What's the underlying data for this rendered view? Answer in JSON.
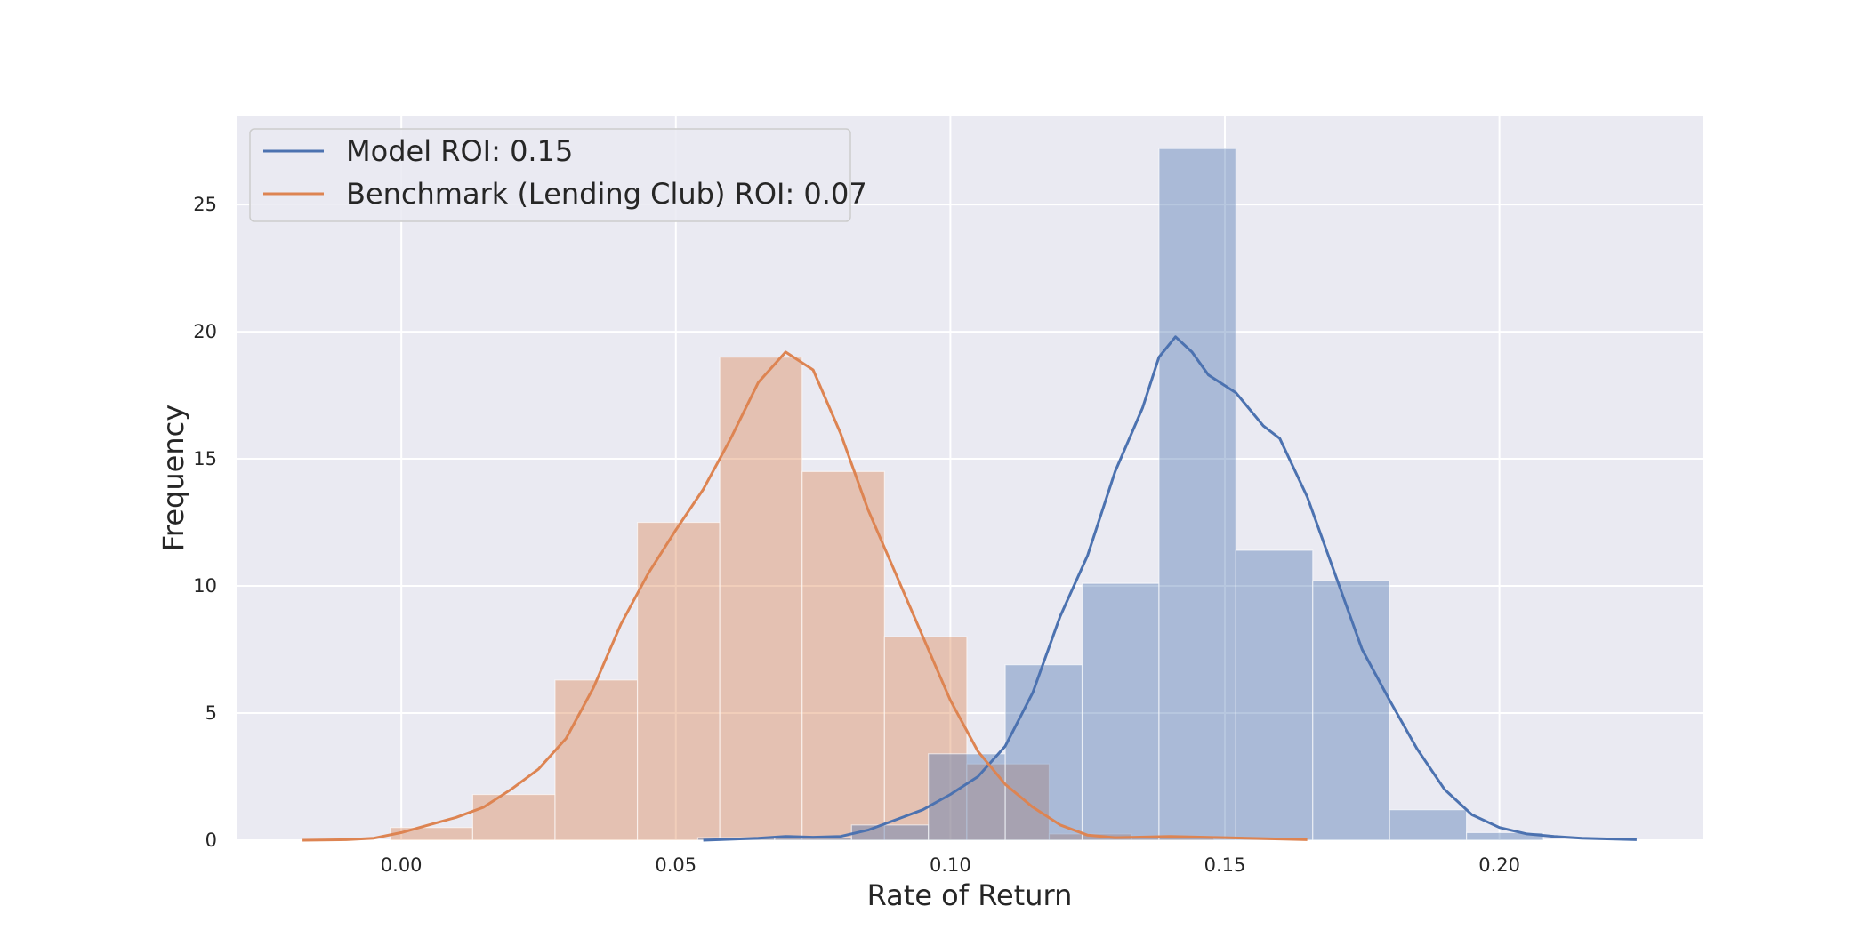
{
  "chart_data": {
    "type": "histogram",
    "xlabel": "Rate of Return",
    "ylabel": "Frequency",
    "xlim": [
      -0.03,
      0.237
    ],
    "ylim": [
      0,
      28.5
    ],
    "x_ticks": [
      0.0,
      0.05,
      0.1,
      0.15,
      0.2
    ],
    "x_tick_labels": [
      "0.00",
      "0.05",
      "0.10",
      "0.15",
      "0.20"
    ],
    "y_ticks": [
      0,
      5,
      10,
      15,
      20,
      25
    ],
    "y_tick_labels": [
      "0",
      "5",
      "10",
      "15",
      "20",
      "25"
    ],
    "grid": true,
    "legend_position": "top-left",
    "background_color": "#eaeaf2",
    "series": [
      {
        "name": "Model ROI: 0.15",
        "color": "#4c72b0",
        "bins": [
          {
            "x0": 0.054,
            "x1": 0.068,
            "value": 0.1
          },
          {
            "x0": 0.068,
            "x1": 0.082,
            "value": 0.1
          },
          {
            "x0": 0.082,
            "x1": 0.096,
            "value": 0.6
          },
          {
            "x0": 0.096,
            "x1": 0.11,
            "value": 3.4
          },
          {
            "x0": 0.11,
            "x1": 0.124,
            "value": 6.9
          },
          {
            "x0": 0.124,
            "x1": 0.138,
            "value": 10.1
          },
          {
            "x0": 0.138,
            "x1": 0.152,
            "value": 27.2
          },
          {
            "x0": 0.152,
            "x1": 0.166,
            "value": 11.4
          },
          {
            "x0": 0.166,
            "x1": 0.18,
            "value": 10.2
          },
          {
            "x0": 0.18,
            "x1": 0.194,
            "value": 1.2
          },
          {
            "x0": 0.194,
            "x1": 0.208,
            "value": 0.3
          }
        ],
        "kde": [
          [
            0.055,
            0.0
          ],
          [
            0.065,
            0.08
          ],
          [
            0.07,
            0.15
          ],
          [
            0.075,
            0.12
          ],
          [
            0.08,
            0.15
          ],
          [
            0.085,
            0.4
          ],
          [
            0.09,
            0.8
          ],
          [
            0.095,
            1.2
          ],
          [
            0.1,
            1.8
          ],
          [
            0.105,
            2.5
          ],
          [
            0.11,
            3.7
          ],
          [
            0.115,
            5.8
          ],
          [
            0.12,
            8.8
          ],
          [
            0.125,
            11.2
          ],
          [
            0.13,
            14.5
          ],
          [
            0.135,
            17.0
          ],
          [
            0.138,
            19.0
          ],
          [
            0.141,
            19.8
          ],
          [
            0.144,
            19.2
          ],
          [
            0.147,
            18.3
          ],
          [
            0.152,
            17.6
          ],
          [
            0.157,
            16.3
          ],
          [
            0.16,
            15.8
          ],
          [
            0.165,
            13.5
          ],
          [
            0.17,
            10.5
          ],
          [
            0.175,
            7.5
          ],
          [
            0.18,
            5.5
          ],
          [
            0.185,
            3.6
          ],
          [
            0.19,
            2.0
          ],
          [
            0.195,
            1.0
          ],
          [
            0.2,
            0.5
          ],
          [
            0.205,
            0.25
          ],
          [
            0.21,
            0.15
          ],
          [
            0.215,
            0.08
          ],
          [
            0.225,
            0.02
          ]
        ]
      },
      {
        "name": "Benchmark (Lending Club) ROI: 0.07",
        "color": "#dd8452",
        "bins": [
          {
            "x0": -0.002,
            "x1": 0.013,
            "value": 0.5
          },
          {
            "x0": 0.013,
            "x1": 0.028,
            "value": 1.8
          },
          {
            "x0": 0.028,
            "x1": 0.043,
            "value": 6.3
          },
          {
            "x0": 0.043,
            "x1": 0.058,
            "value": 12.5
          },
          {
            "x0": 0.058,
            "x1": 0.073,
            "value": 19.0
          },
          {
            "x0": 0.073,
            "x1": 0.088,
            "value": 14.5
          },
          {
            "x0": 0.088,
            "x1": 0.103,
            "value": 8.0
          },
          {
            "x0": 0.103,
            "x1": 0.118,
            "value": 3.0
          },
          {
            "x0": 0.118,
            "x1": 0.133,
            "value": 0.25
          },
          {
            "x0": 0.133,
            "x1": 0.148,
            "value": 0.15
          }
        ],
        "kde": [
          [
            -0.018,
            0.0
          ],
          [
            -0.01,
            0.02
          ],
          [
            -0.005,
            0.08
          ],
          [
            0.0,
            0.3
          ],
          [
            0.005,
            0.6
          ],
          [
            0.01,
            0.9
          ],
          [
            0.015,
            1.3
          ],
          [
            0.02,
            2.0
          ],
          [
            0.025,
            2.8
          ],
          [
            0.03,
            4.0
          ],
          [
            0.035,
            6.0
          ],
          [
            0.04,
            8.5
          ],
          [
            0.045,
            10.5
          ],
          [
            0.05,
            12.2
          ],
          [
            0.055,
            13.8
          ],
          [
            0.06,
            15.8
          ],
          [
            0.065,
            18.0
          ],
          [
            0.07,
            19.2
          ],
          [
            0.075,
            18.5
          ],
          [
            0.08,
            16.0
          ],
          [
            0.085,
            13.0
          ],
          [
            0.09,
            10.5
          ],
          [
            0.095,
            8.0
          ],
          [
            0.1,
            5.5
          ],
          [
            0.105,
            3.5
          ],
          [
            0.11,
            2.2
          ],
          [
            0.115,
            1.3
          ],
          [
            0.12,
            0.6
          ],
          [
            0.125,
            0.2
          ],
          [
            0.13,
            0.1
          ],
          [
            0.14,
            0.15
          ],
          [
            0.15,
            0.1
          ],
          [
            0.165,
            0.02
          ]
        ]
      }
    ]
  }
}
